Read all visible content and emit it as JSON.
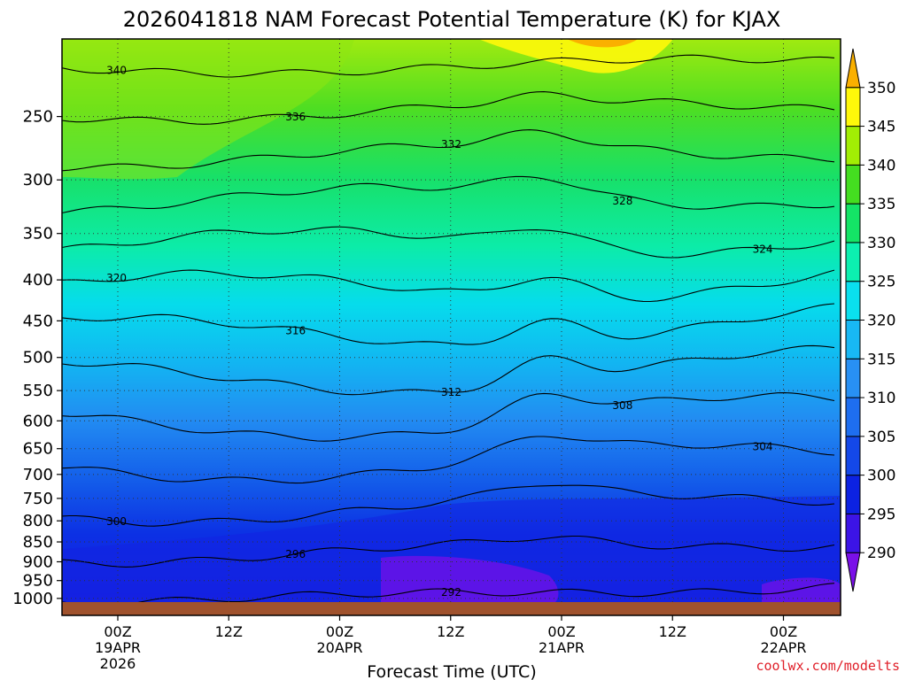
{
  "chart_data": {
    "type": "heatmap",
    "title": "2026041818 NAM Forecast Potential Temperature (K) for KJAX",
    "xlabel": "Forecast Time (UTC)",
    "ylabel": "",
    "y_scale": "log-pressure",
    "y_ticks": [
      "250",
      "300",
      "350",
      "400",
      "450",
      "500",
      "550",
      "600",
      "650",
      "700",
      "750",
      "800",
      "850",
      "900",
      "950",
      "1000"
    ],
    "x_ticks": [
      {
        "label": "00Z",
        "sub": "19APR",
        "sub2": "2026"
      },
      {
        "label": "12Z",
        "sub": "",
        "sub2": ""
      },
      {
        "label": "00Z",
        "sub": "20APR",
        "sub2": ""
      },
      {
        "label": "12Z",
        "sub": "",
        "sub2": ""
      },
      {
        "label": "00Z",
        "sub": "21APR",
        "sub2": ""
      },
      {
        "label": "12Z",
        "sub": "",
        "sub2": ""
      },
      {
        "label": "00Z",
        "sub": "22APR",
        "sub2": ""
      }
    ],
    "colorbar_levels": [
      "290",
      "295",
      "300",
      "305",
      "310",
      "315",
      "320",
      "325",
      "330",
      "335",
      "340",
      "345",
      "350"
    ],
    "colors": [
      "#7a10e8",
      "#3c14e6",
      "#0c22e2",
      "#1448e8",
      "#1e6ef0",
      "#2890f4",
      "#18b8f4",
      "#0ae0ee",
      "#0cf0b0",
      "#14e466",
      "#44de20",
      "#a2ee04",
      "#fff80a",
      "#fab000"
    ],
    "contour_labels": [
      "340",
      "336",
      "332",
      "328",
      "324",
      "320",
      "316",
      "312",
      "308",
      "304",
      "300",
      "296",
      "292"
    ],
    "grid": true
  },
  "credit": "coolwx.com/modelts",
  "ground_color": "#a0522d"
}
